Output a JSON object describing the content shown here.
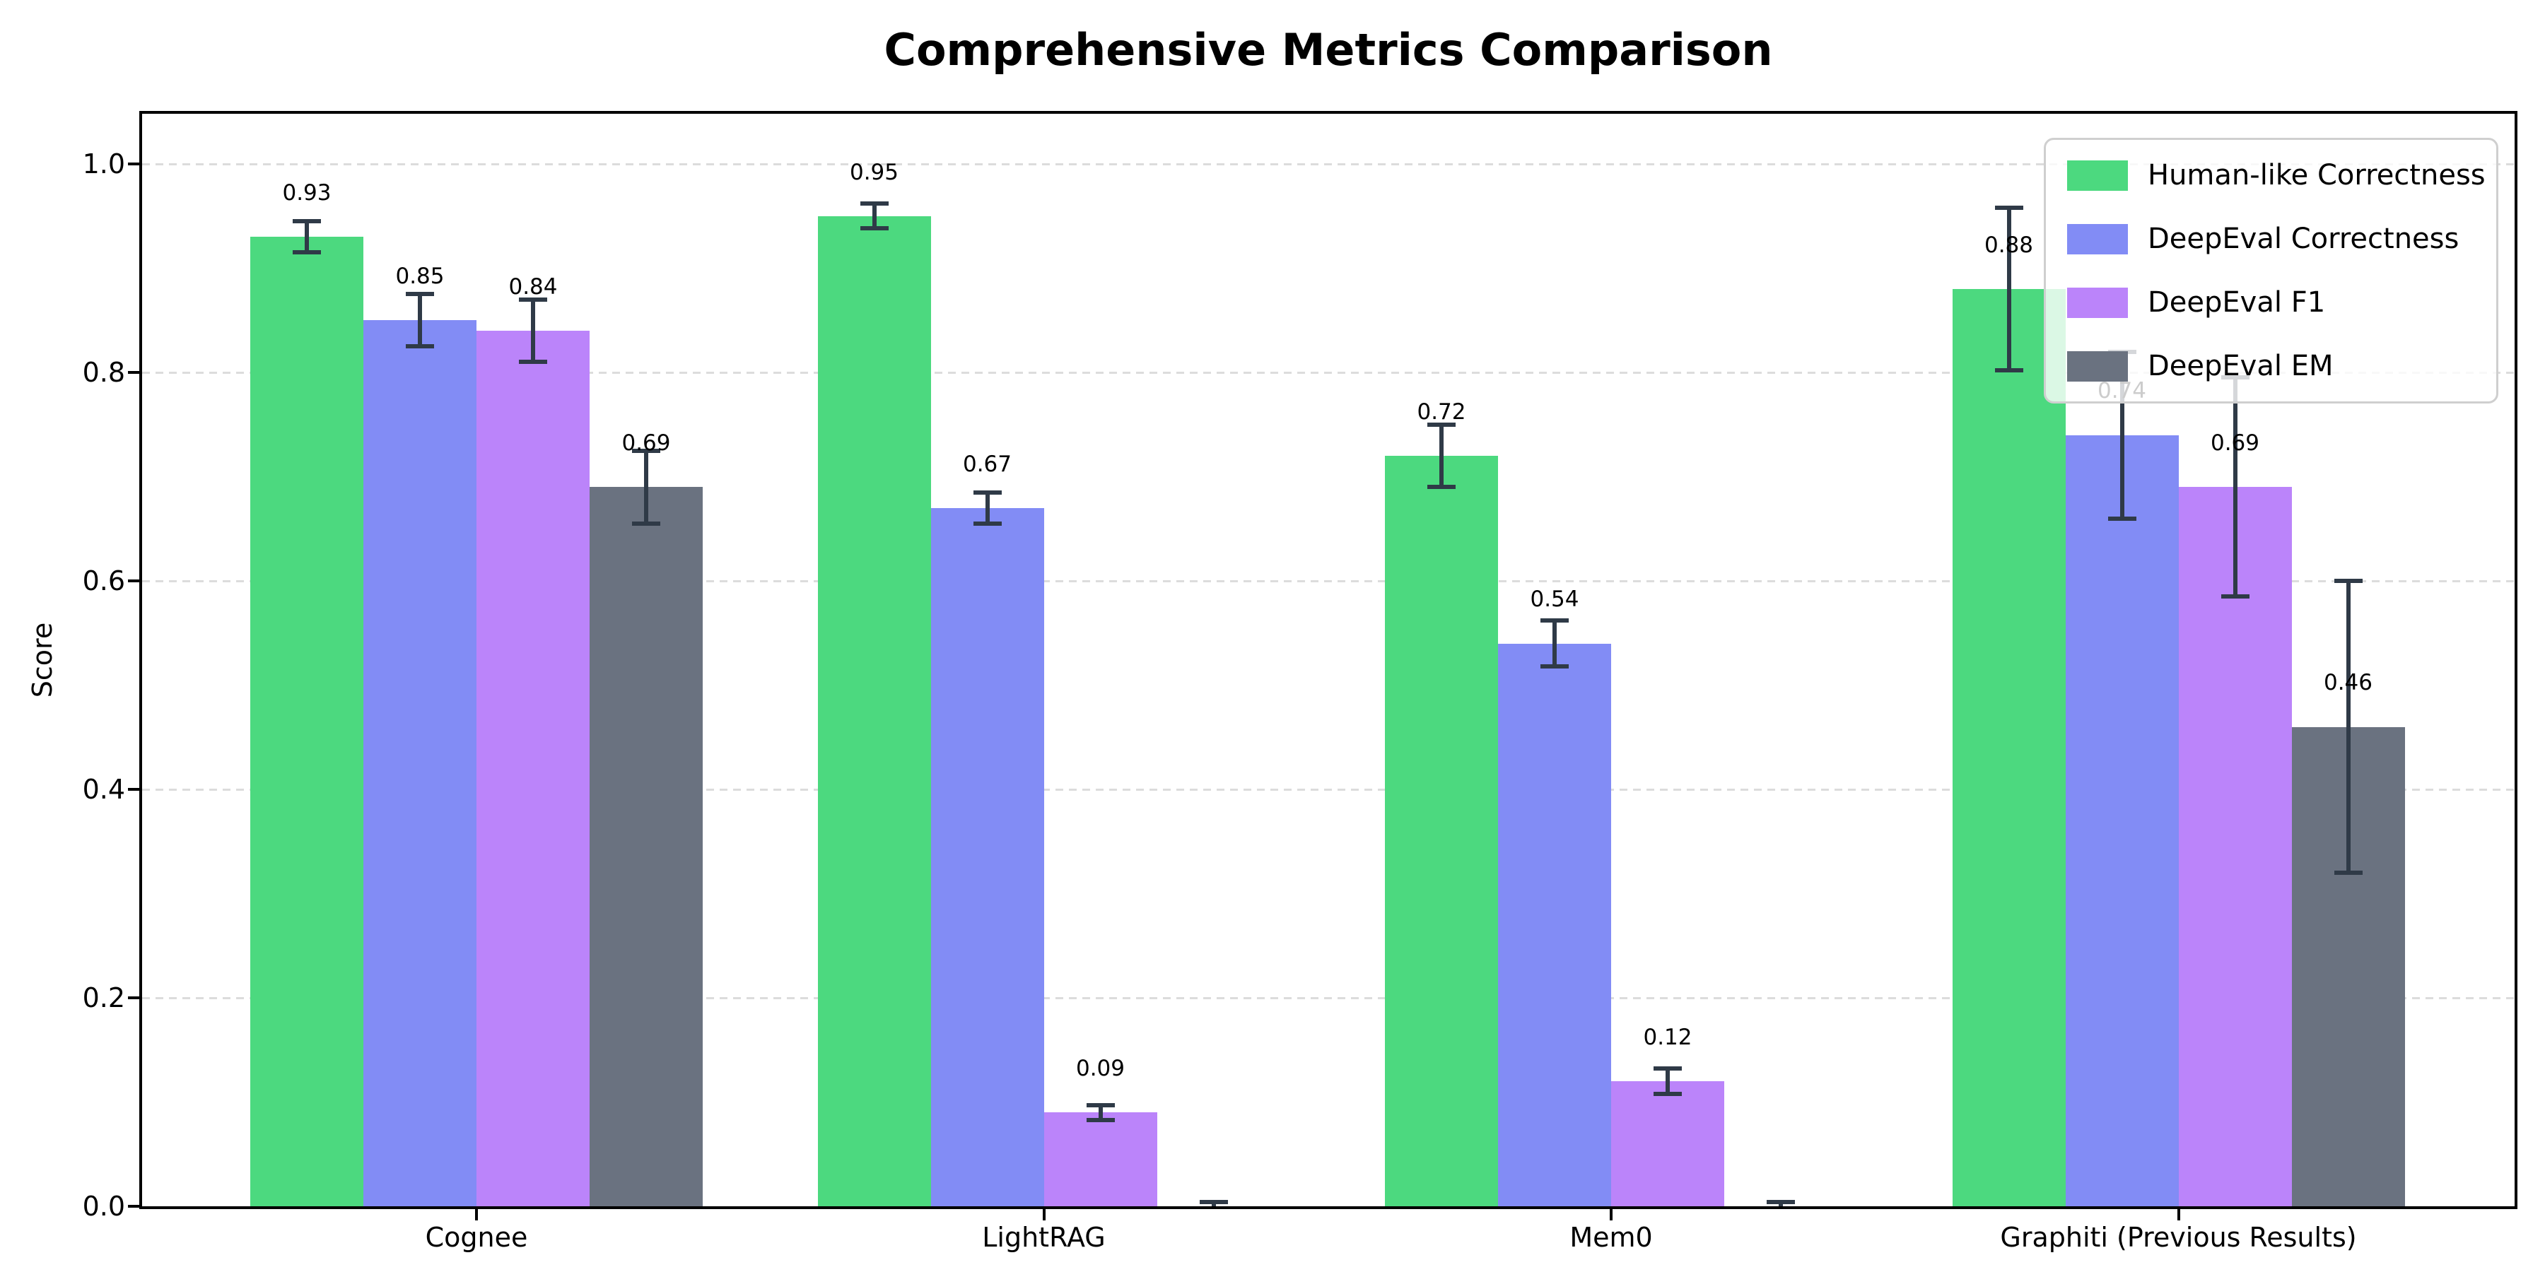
{
  "title": "Comprehensive Metrics Comparison",
  "chart_data": {
    "type": "bar",
    "title": "Comprehensive Metrics Comparison",
    "categories": [
      "Cognee",
      "LightRAG",
      "Mem0",
      "Graphiti (Previous Results)"
    ],
    "series": [
      {
        "name": "Human-like Correctness",
        "color": "#4cd97f",
        "values": [
          0.93,
          0.95,
          0.72,
          0.88
        ],
        "errors": [
          0.015,
          0.012,
          0.03,
          0.078
        ],
        "labels": [
          "0.93",
          "0.95",
          "0.72",
          "0.88"
        ]
      },
      {
        "name": "DeepEval Correctness",
        "color": "#828cf5",
        "values": [
          0.85,
          0.67,
          0.54,
          0.74
        ],
        "errors": [
          0.025,
          0.015,
          0.022,
          0.08
        ],
        "labels": [
          "0.85",
          "0.67",
          "0.54",
          "0.74"
        ]
      },
      {
        "name": "DeepEval F1",
        "color": "#bb84fa",
        "values": [
          0.84,
          0.09,
          0.12,
          0.69
        ],
        "errors": [
          0.03,
          0.007,
          0.012,
          0.105
        ],
        "labels": [
          "0.84",
          "0.09",
          "0.12",
          "0.69"
        ]
      },
      {
        "name": "DeepEval EM",
        "color": "#6a7280",
        "values": [
          0.69,
          0.0,
          0.0,
          0.46
        ],
        "errors": [
          0.035,
          0.004,
          0.004,
          0.14
        ],
        "labels": [
          "0.69",
          "",
          "",
          "0.46"
        ]
      }
    ],
    "ylabel": "Score",
    "yticks": [
      0.0,
      0.2,
      0.4,
      0.6,
      0.8,
      1.0
    ],
    "ytick_labels": [
      "0.0",
      "0.2",
      "0.4",
      "0.6",
      "0.8",
      "1.0"
    ],
    "ylim": [
      0,
      1.048
    ],
    "grid": "horizontal-dashed",
    "grid_color": "#dcdcdc",
    "error_bar_color": "#2f3a47",
    "legend_position": "upper-right"
  }
}
